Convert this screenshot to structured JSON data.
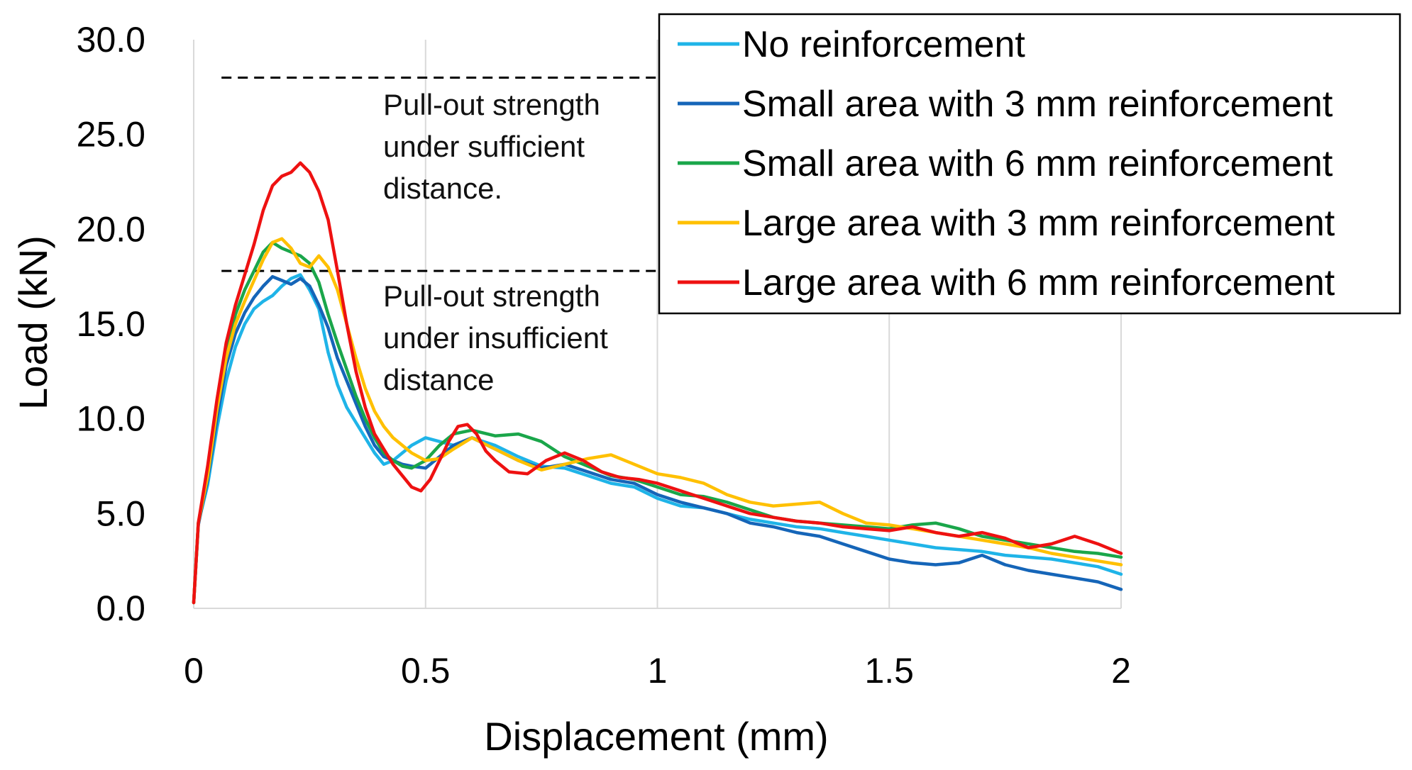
{
  "chart_data": {
    "type": "line",
    "title": "",
    "xlabel": "Displacement (mm)",
    "ylabel": "Load (kN)",
    "xlim": [
      0,
      2
    ],
    "ylim": [
      0,
      30
    ],
    "xticks": [
      0,
      0.5,
      1,
      1.5,
      2
    ],
    "xtick_labels": [
      "0",
      "0.5",
      "1",
      "1.5",
      "2"
    ],
    "yticks": [
      0,
      5,
      10,
      15,
      20,
      25,
      30
    ],
    "ytick_labels": [
      "0.0",
      "5.0",
      "10.0",
      "15.0",
      "20.0",
      "25.0",
      "30.0"
    ],
    "grid": "vertical",
    "legend_position": "top-right",
    "reference_lines": [
      {
        "y": 28.0,
        "style": "dashed",
        "x_range": [
          0.03,
          0.98
        ]
      },
      {
        "y": 17.8,
        "style": "dashed",
        "x_range": [
          0.03,
          0.98
        ]
      }
    ],
    "annotations": [
      {
        "lines": [
          "Pull-out strength",
          "under sufficient",
          "distance."
        ]
      },
      {
        "lines": [
          "Pull-out strength",
          "under insufficient",
          "distance"
        ]
      }
    ],
    "series": [
      {
        "name": "No reinforcement",
        "color": "#1fb4e8",
        "x": [
          0,
          0.01,
          0.03,
          0.05,
          0.07,
          0.09,
          0.11,
          0.13,
          0.15,
          0.17,
          0.19,
          0.21,
          0.23,
          0.25,
          0.27,
          0.29,
          0.31,
          0.33,
          0.35,
          0.37,
          0.39,
          0.41,
          0.43,
          0.45,
          0.47,
          0.5,
          0.53,
          0.56,
          0.6,
          0.65,
          0.7,
          0.75,
          0.8,
          0.85,
          0.9,
          0.95,
          1.0,
          1.05,
          1.1,
          1.15,
          1.2,
          1.25,
          1.3,
          1.35,
          1.4,
          1.45,
          1.5,
          1.55,
          1.6,
          1.65,
          1.7,
          1.75,
          1.8,
          1.85,
          1.9,
          1.95,
          2.0
        ],
        "y": [
          0.3,
          4.5,
          6.5,
          9.5,
          12.0,
          13.8,
          15.0,
          15.8,
          16.2,
          16.5,
          17.0,
          17.4,
          17.6,
          16.8,
          15.8,
          13.5,
          11.8,
          10.6,
          9.8,
          9.0,
          8.2,
          7.6,
          7.8,
          8.2,
          8.6,
          9.0,
          8.8,
          8.6,
          9.0,
          8.6,
          8.0,
          7.5,
          7.4,
          7.0,
          6.6,
          6.4,
          5.8,
          5.4,
          5.3,
          5.0,
          4.7,
          4.5,
          4.3,
          4.2,
          4.0,
          3.8,
          3.6,
          3.4,
          3.2,
          3.1,
          3.0,
          2.8,
          2.7,
          2.6,
          2.4,
          2.2,
          1.8
        ]
      },
      {
        "name": "Small area with 3 mm reinforcement",
        "color": "#1565b8",
        "x": [
          0,
          0.01,
          0.03,
          0.05,
          0.07,
          0.09,
          0.11,
          0.13,
          0.15,
          0.17,
          0.19,
          0.21,
          0.23,
          0.25,
          0.27,
          0.29,
          0.31,
          0.33,
          0.35,
          0.37,
          0.39,
          0.41,
          0.43,
          0.45,
          0.47,
          0.5,
          0.53,
          0.56,
          0.6,
          0.65,
          0.7,
          0.75,
          0.8,
          0.85,
          0.9,
          0.95,
          1.0,
          1.05,
          1.1,
          1.15,
          1.2,
          1.25,
          1.3,
          1.35,
          1.4,
          1.45,
          1.5,
          1.55,
          1.6,
          1.65,
          1.7,
          1.75,
          1.8,
          1.85,
          1.9,
          1.95,
          2.0
        ],
        "y": [
          0.3,
          4.4,
          6.8,
          10.0,
          12.8,
          14.5,
          15.6,
          16.4,
          17.0,
          17.5,
          17.3,
          17.1,
          17.4,
          17.0,
          16.0,
          14.8,
          13.2,
          12.0,
          10.8,
          9.6,
          8.6,
          8.0,
          7.8,
          7.6,
          7.5,
          7.4,
          8.0,
          8.6,
          9.0,
          8.4,
          7.8,
          7.4,
          7.6,
          7.2,
          6.8,
          6.6,
          6.0,
          5.6,
          5.3,
          5.0,
          4.5,
          4.3,
          4.0,
          3.8,
          3.4,
          3.0,
          2.6,
          2.4,
          2.3,
          2.4,
          2.8,
          2.3,
          2.0,
          1.8,
          1.6,
          1.4,
          1.0
        ]
      },
      {
        "name": "Small area with 6 mm reinforcement",
        "color": "#1aa64a",
        "x": [
          0,
          0.01,
          0.03,
          0.05,
          0.07,
          0.09,
          0.11,
          0.13,
          0.15,
          0.17,
          0.19,
          0.21,
          0.23,
          0.25,
          0.27,
          0.29,
          0.31,
          0.33,
          0.35,
          0.37,
          0.39,
          0.41,
          0.43,
          0.45,
          0.47,
          0.5,
          0.53,
          0.56,
          0.6,
          0.65,
          0.7,
          0.75,
          0.8,
          0.85,
          0.9,
          0.95,
          1.0,
          1.05,
          1.1,
          1.15,
          1.2,
          1.25,
          1.3,
          1.35,
          1.4,
          1.45,
          1.5,
          1.55,
          1.6,
          1.65,
          1.7,
          1.75,
          1.8,
          1.85,
          1.9,
          1.95,
          2.0
        ],
        "y": [
          0.3,
          4.5,
          7.0,
          10.5,
          13.5,
          15.5,
          16.8,
          17.8,
          18.8,
          19.3,
          19.0,
          18.8,
          18.6,
          18.2,
          17.2,
          15.5,
          14.0,
          12.6,
          11.2,
          10.0,
          9.0,
          8.2,
          7.8,
          7.5,
          7.4,
          7.8,
          8.6,
          9.2,
          9.4,
          9.1,
          9.2,
          8.8,
          8.0,
          7.5,
          7.0,
          6.8,
          6.4,
          6.0,
          5.9,
          5.6,
          5.2,
          4.8,
          4.6,
          4.5,
          4.4,
          4.3,
          4.2,
          4.4,
          4.5,
          4.2,
          3.8,
          3.6,
          3.4,
          3.2,
          3.0,
          2.9,
          2.7
        ]
      },
      {
        "name": "Large area with 3 mm reinforcement",
        "color": "#ffc000",
        "x": [
          0,
          0.01,
          0.03,
          0.05,
          0.07,
          0.09,
          0.11,
          0.13,
          0.15,
          0.17,
          0.19,
          0.21,
          0.23,
          0.25,
          0.27,
          0.29,
          0.31,
          0.33,
          0.35,
          0.37,
          0.39,
          0.41,
          0.43,
          0.45,
          0.47,
          0.5,
          0.53,
          0.56,
          0.6,
          0.65,
          0.7,
          0.75,
          0.8,
          0.85,
          0.9,
          0.95,
          1.0,
          1.05,
          1.1,
          1.15,
          1.2,
          1.25,
          1.3,
          1.35,
          1.4,
          1.45,
          1.5,
          1.55,
          1.6,
          1.65,
          1.7,
          1.75,
          1.8,
          1.85,
          1.9,
          1.95,
          2.0
        ],
        "y": [
          0.3,
          4.5,
          7.0,
          10.5,
          13.2,
          15.0,
          16.2,
          17.3,
          18.4,
          19.3,
          19.5,
          19.0,
          18.2,
          18.0,
          18.6,
          18.0,
          16.8,
          15.0,
          13.2,
          11.6,
          10.4,
          9.6,
          9.0,
          8.6,
          8.2,
          7.8,
          7.9,
          8.4,
          9.0,
          8.4,
          7.8,
          7.3,
          7.6,
          7.9,
          8.1,
          7.6,
          7.1,
          6.9,
          6.6,
          6.0,
          5.6,
          5.4,
          5.5,
          5.6,
          5.0,
          4.5,
          4.4,
          4.2,
          4.0,
          3.8,
          3.6,
          3.4,
          3.2,
          2.9,
          2.7,
          2.5,
          2.3
        ]
      },
      {
        "name": "Large area with 6 mm reinforcement",
        "color": "#ee1111",
        "x": [
          0,
          0.01,
          0.03,
          0.05,
          0.07,
          0.09,
          0.11,
          0.13,
          0.15,
          0.17,
          0.19,
          0.21,
          0.23,
          0.25,
          0.27,
          0.29,
          0.31,
          0.33,
          0.35,
          0.37,
          0.39,
          0.41,
          0.43,
          0.45,
          0.47,
          0.49,
          0.51,
          0.53,
          0.55,
          0.57,
          0.59,
          0.61,
          0.63,
          0.65,
          0.68,
          0.72,
          0.76,
          0.8,
          0.84,
          0.88,
          0.92,
          0.96,
          1.0,
          1.05,
          1.1,
          1.15,
          1.2,
          1.25,
          1.3,
          1.35,
          1.4,
          1.45,
          1.5,
          1.55,
          1.6,
          1.65,
          1.7,
          1.75,
          1.8,
          1.85,
          1.9,
          1.95,
          2.0
        ],
        "y": [
          0.3,
          4.5,
          7.5,
          11.0,
          14.0,
          16.0,
          17.6,
          19.2,
          21.0,
          22.3,
          22.8,
          23.0,
          23.5,
          23.0,
          22.0,
          20.5,
          17.8,
          15.0,
          12.5,
          10.6,
          9.2,
          8.4,
          7.6,
          7.0,
          6.4,
          6.2,
          6.8,
          7.8,
          8.8,
          9.6,
          9.7,
          9.2,
          8.3,
          7.8,
          7.2,
          7.1,
          7.8,
          8.2,
          7.8,
          7.2,
          6.9,
          6.8,
          6.6,
          6.2,
          5.8,
          5.4,
          5.0,
          4.8,
          4.6,
          4.5,
          4.3,
          4.2,
          4.1,
          4.3,
          4.0,
          3.8,
          4.0,
          3.7,
          3.2,
          3.4,
          3.8,
          3.4,
          2.9
        ]
      }
    ]
  }
}
